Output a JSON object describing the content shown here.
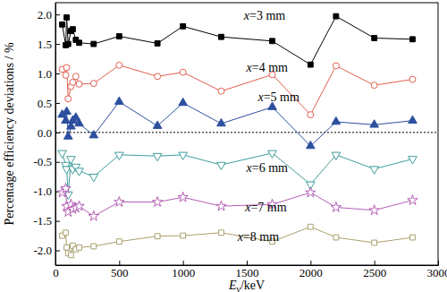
{
  "chart_data": {
    "type": "line",
    "x_label": "Eγ/keV",
    "y_label": "Percentage efficiency deviations / %",
    "x": [
      53,
      81,
      88,
      100,
      122,
      136,
      160,
      186,
      300,
      500,
      800,
      1000,
      1300,
      1700,
      2000,
      2200,
      2500,
      2800
    ],
    "series": [
      {
        "name": "x=3 mm",
        "color": "#000000",
        "marker": "square",
        "values": [
          1.83,
          1.48,
          1.95,
          1.5,
          1.72,
          1.75,
          1.57,
          1.52,
          1.5,
          1.63,
          1.51,
          1.8,
          1.62,
          1.55,
          1.15,
          1.97,
          1.6,
          1.58
        ]
      },
      {
        "name": "x=4 mm",
        "color": "#e0604f",
        "marker": "circle-open",
        "values": [
          1.07,
          0.97,
          1.1,
          0.57,
          0.78,
          0.85,
          0.95,
          0.82,
          0.83,
          1.14,
          0.95,
          1.02,
          0.7,
          0.98,
          0.3,
          1.13,
          0.8,
          0.9
        ]
      },
      {
        "name": "x=5 mm",
        "color": "#2c4f9e",
        "marker": "triangle",
        "values": [
          0.3,
          0.2,
          0.35,
          -0.07,
          0.1,
          0.2,
          0.25,
          0.15,
          -0.05,
          0.52,
          0.11,
          0.5,
          0.15,
          0.43,
          -0.23,
          0.18,
          0.13,
          0.2
        ]
      },
      {
        "name": "x=6 mm",
        "color": "#3f9c9c",
        "marker": "triangle-down-open",
        "values": [
          -0.35,
          -0.55,
          -0.62,
          -1.05,
          -0.45,
          -0.62,
          -0.58,
          -0.65,
          -0.75,
          -0.38,
          -0.4,
          -0.38,
          -0.55,
          -0.35,
          -0.88,
          -0.38,
          -0.62,
          -0.45
        ]
      },
      {
        "name": "x=7 mm",
        "color": "#b45fb4",
        "marker": "star-open",
        "values": [
          -1.02,
          -0.95,
          -1.25,
          -1.35,
          -1.22,
          -1.3,
          -1.28,
          -1.25,
          -1.42,
          -1.18,
          -1.18,
          -1.1,
          -1.25,
          -1.22,
          -1.02,
          -1.27,
          -1.32,
          -1.15
        ]
      },
      {
        "name": "x=8 mm",
        "color": "#a9a06e",
        "marker": "square-open",
        "values": [
          -1.75,
          -1.7,
          -1.95,
          -2.05,
          -2.08,
          -1.92,
          -1.98,
          -1.95,
          -1.93,
          -1.85,
          -1.76,
          -1.75,
          -1.7,
          -1.85,
          -1.6,
          -1.78,
          -1.87,
          -1.78
        ]
      }
    ],
    "annotations": [
      {
        "text": "x=3 mm",
        "x": 1640,
        "y": 1.96
      },
      {
        "text": "x=4 mm",
        "x": 1660,
        "y": 1.08
      },
      {
        "text": "x=5 mm",
        "x": 1750,
        "y": 0.57
      },
      {
        "text": "x=6 mm",
        "x": 1660,
        "y": -0.62
      },
      {
        "text": "x=7 mm",
        "x": 1650,
        "y": -1.29
      },
      {
        "text": "x=8 mm",
        "x": 1590,
        "y": -1.79
      }
    ],
    "hlines": [
      {
        "value": 0,
        "line_style": "dotted"
      }
    ],
    "xlim": [
      0,
      3000
    ],
    "ylim": [
      -2.25,
      2.2
    ],
    "xticks": [
      0,
      500,
      1000,
      1500,
      2000,
      2500,
      3000
    ],
    "yticks": [
      {
        "value": -2,
        "label": "-2.0"
      },
      -1.5,
      {
        "value": -1,
        "label": "-1.0"
      },
      -0.5,
      {
        "value": 0,
        "label": "0.0"
      },
      0.5,
      {
        "value": 1,
        "label": "1.0"
      },
      1.5,
      {
        "value": 2,
        "label": "2.0"
      }
    ],
    "legend": false,
    "grid": false
  }
}
